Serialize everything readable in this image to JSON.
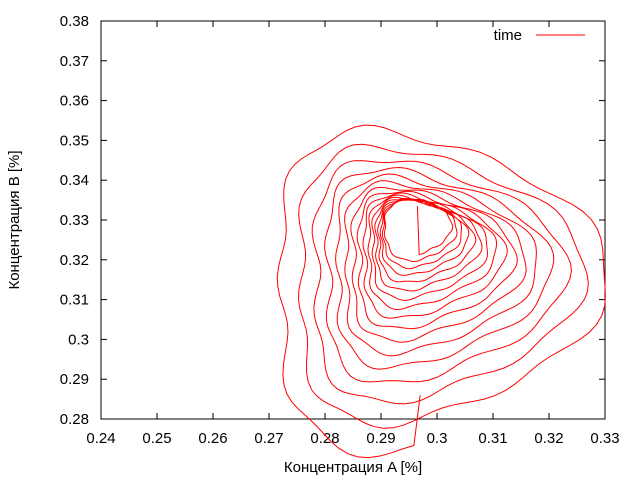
{
  "chart_data": {
    "type": "line",
    "title": "",
    "xlabel": "Концентрация A [%]",
    "ylabel": "Концентрация B [%]",
    "xlim": [
      0.24,
      0.33
    ],
    "ylim": [
      0.28,
      0.38
    ],
    "xticks": [
      "0.24",
      "0.25",
      "0.26",
      "0.27",
      "0.28",
      "0.29",
      "0.3",
      "0.31",
      "0.32",
      "0.33"
    ],
    "yticks": [
      "0.28",
      "0.29",
      "0.3",
      "0.31",
      "0.32",
      "0.33",
      "0.34",
      "0.35",
      "0.36",
      "0.37",
      "0.38"
    ],
    "grid": false,
    "legend_position": "top-right",
    "colors": {
      "series": "#ff0000",
      "frame": "#000000"
    },
    "series": [
      {
        "name": "time",
        "trajectory": {
          "start": [
            0.297,
            0.286
          ],
          "end": [
            0.2965,
            0.3335
          ],
          "center_x": [
            0.2971,
            0.2963
          ],
          "center_y": [
            0.314,
            0.3285
          ],
          "radius_x": [
            0.032,
            0.0058
          ],
          "radius_y": [
            0.042,
            0.007
          ],
          "start_angle_deg": -85,
          "turns": 16,
          "samples": 1600
        }
      }
    ]
  }
}
